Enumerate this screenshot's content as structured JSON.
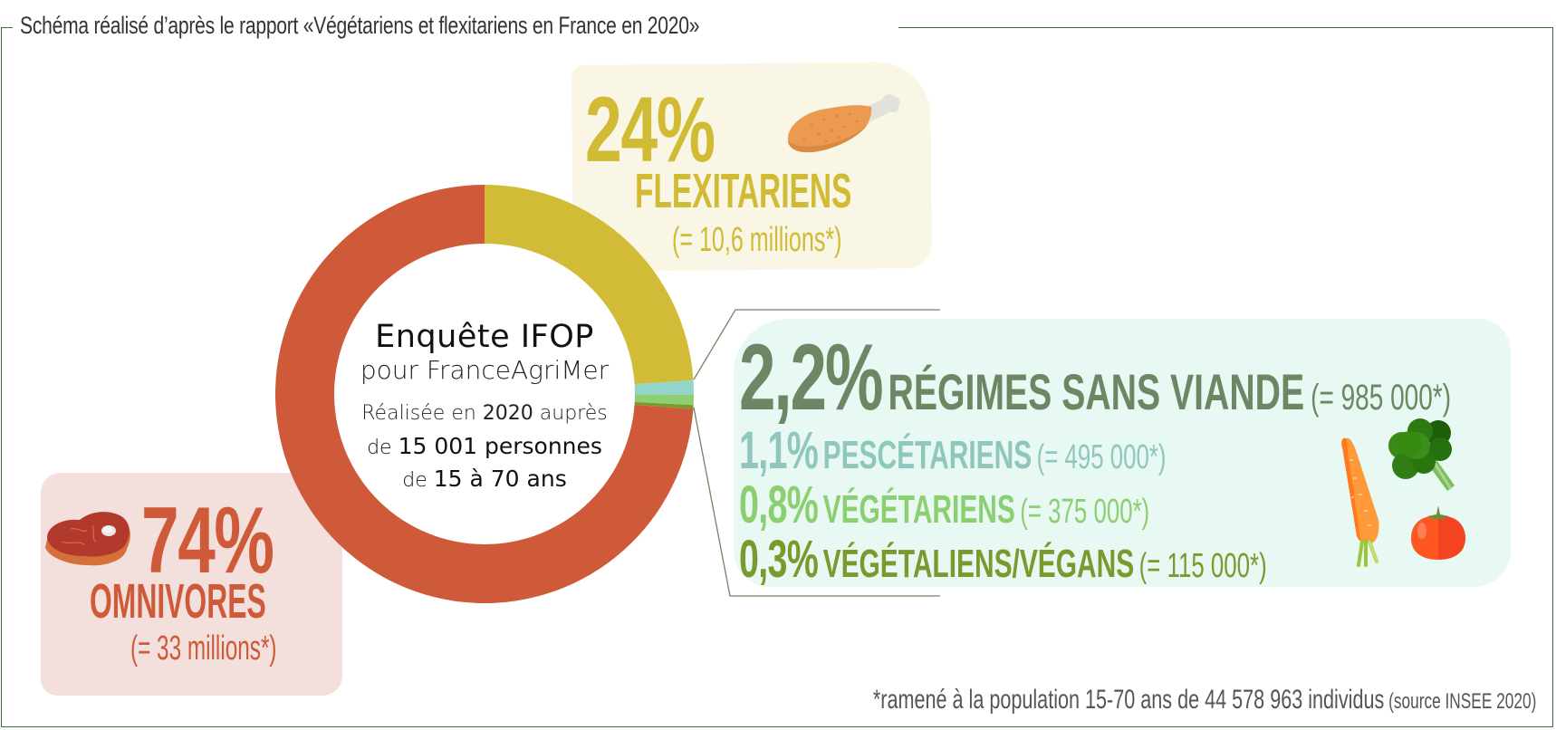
{
  "header": {
    "title": "Schéma réalisé d’après le rapport «Végétariens et flexitariens en France en 2020»"
  },
  "center": {
    "title": "Enquête IFOP",
    "subtitle": "pour FranceAgriMer",
    "line1_prefix": "Réalisée en ",
    "line1_bold": "2020",
    "line1_suffix": " auprès",
    "line2_prefix": "de ",
    "line2_bold": "15 001 personnes",
    "line3_prefix": "de ",
    "line3_bold": "15 à 70 ans"
  },
  "flexitariens": {
    "percent": "24%",
    "label": "FLEXITARIENS",
    "count": "(= 10,6 millions*)",
    "icon": "chicken-leg-icon"
  },
  "omnivores": {
    "percent": "74%",
    "label": "OMNIVORES",
    "count": "(= 33 millions*)",
    "icon": "steak-icon"
  },
  "sans_viande": {
    "percent": "2,2%",
    "label": "RÉGIMES SANS VIANDE",
    "count": "(= 985 000*)",
    "icons": [
      "carrot-icon",
      "broccoli-icon",
      "tomato-icon"
    ],
    "rows": [
      {
        "percent": "1,1%",
        "label": "PESCÉTARIENS",
        "count": "(= 495 000*)"
      },
      {
        "percent": "0,8%",
        "label": "VÉGÉTARIENS",
        "count": "(= 375 000*)"
      },
      {
        "percent": "0,3%",
        "label": "VÉGÉTALIENS/VÉGANS",
        "count": "(= 115 000*)"
      }
    ]
  },
  "footnote": {
    "main": "*ramené à la population 15-70 ans de 44 578 963 individus",
    "source": " (source INSEE 2020)"
  },
  "colors": {
    "flexitariens": "#d2bc37",
    "pescetariens": "#93d5cb",
    "vegetariens": "#8fcf73",
    "vegans": "#7a9a2e",
    "omnivores": "#cf5a39",
    "sans_viande_text": "#6c8763",
    "border": "#3f6b3a"
  },
  "chart_data": {
    "type": "pie",
    "subtype": "donut",
    "title": "Enquête IFOP pour FranceAgriMer",
    "categories": [
      "Flexitariens",
      "Pescétariens",
      "Végétariens",
      "Végétaliens/Végans",
      "Omnivores"
    ],
    "values": [
      24,
      1.1,
      0.8,
      0.3,
      74
    ],
    "unit": "%",
    "population_equivalents": [
      "10,6 millions",
      "495 000",
      "375 000",
      "115 000",
      "33 millions"
    ],
    "groups": [
      {
        "name": "Régimes sans viande",
        "members": [
          "Pescétariens",
          "Végétariens",
          "Végétaliens/Végans"
        ],
        "value": 2.2,
        "population": "985 000"
      }
    ],
    "colors": [
      "#d2bc37",
      "#93d5cb",
      "#8fcf73",
      "#7a9a2e",
      "#cf5a39"
    ],
    "start_angle": "12 o'clock, clockwise",
    "legend": "annotations beside slices"
  }
}
